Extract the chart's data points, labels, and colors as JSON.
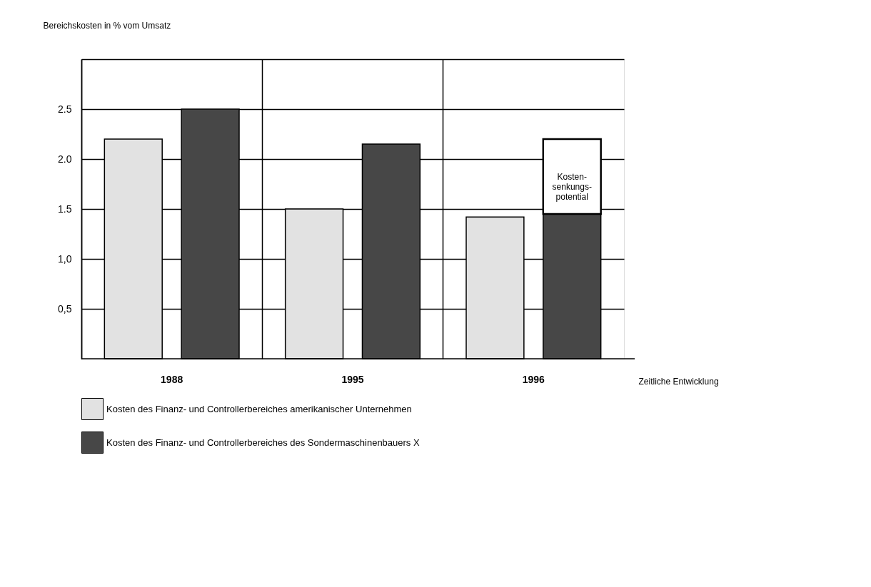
{
  "chart_data": {
    "type": "bar",
    "ylabel": "Bereichskosten in % vom Umsatz",
    "xlabel": "Zeitliche Entwicklung",
    "categories": [
      "1988",
      "1995",
      "1996"
    ],
    "series": [
      {
        "name": "Kosten des Finanz- und Controllerbereiches amerikanischer Unternehmen",
        "color": "#e2e2e2",
        "values": [
          2.2,
          1.5,
          1.42
        ]
      },
      {
        "name": "Kosten des Finanz- und Controllerbereiches des Sondermaschinenbauers X",
        "color": "#474747",
        "values": [
          2.5,
          2.15,
          1.45
        ]
      },
      {
        "color": "#ffffff",
        "values": [
          null,
          null,
          0.75
        ],
        "base": [
          null,
          null,
          1.45
        ]
      }
    ],
    "annotations": [
      "Kosten-\nsenkungs-\npotential"
    ],
    "ylim": [
      0,
      3.0
    ],
    "yticks": [
      {
        "value": 0.5,
        "label": "0,5"
      },
      {
        "value": 1.0,
        "label": "1,0"
      },
      {
        "value": 1.5,
        "label": "1.5"
      },
      {
        "value": 2.0,
        "label": "2.0"
      },
      {
        "value": 2.5,
        "label": "2.5"
      },
      {
        "value": 3.0,
        "label": null
      }
    ],
    "grid": true,
    "legend": "bottom"
  }
}
